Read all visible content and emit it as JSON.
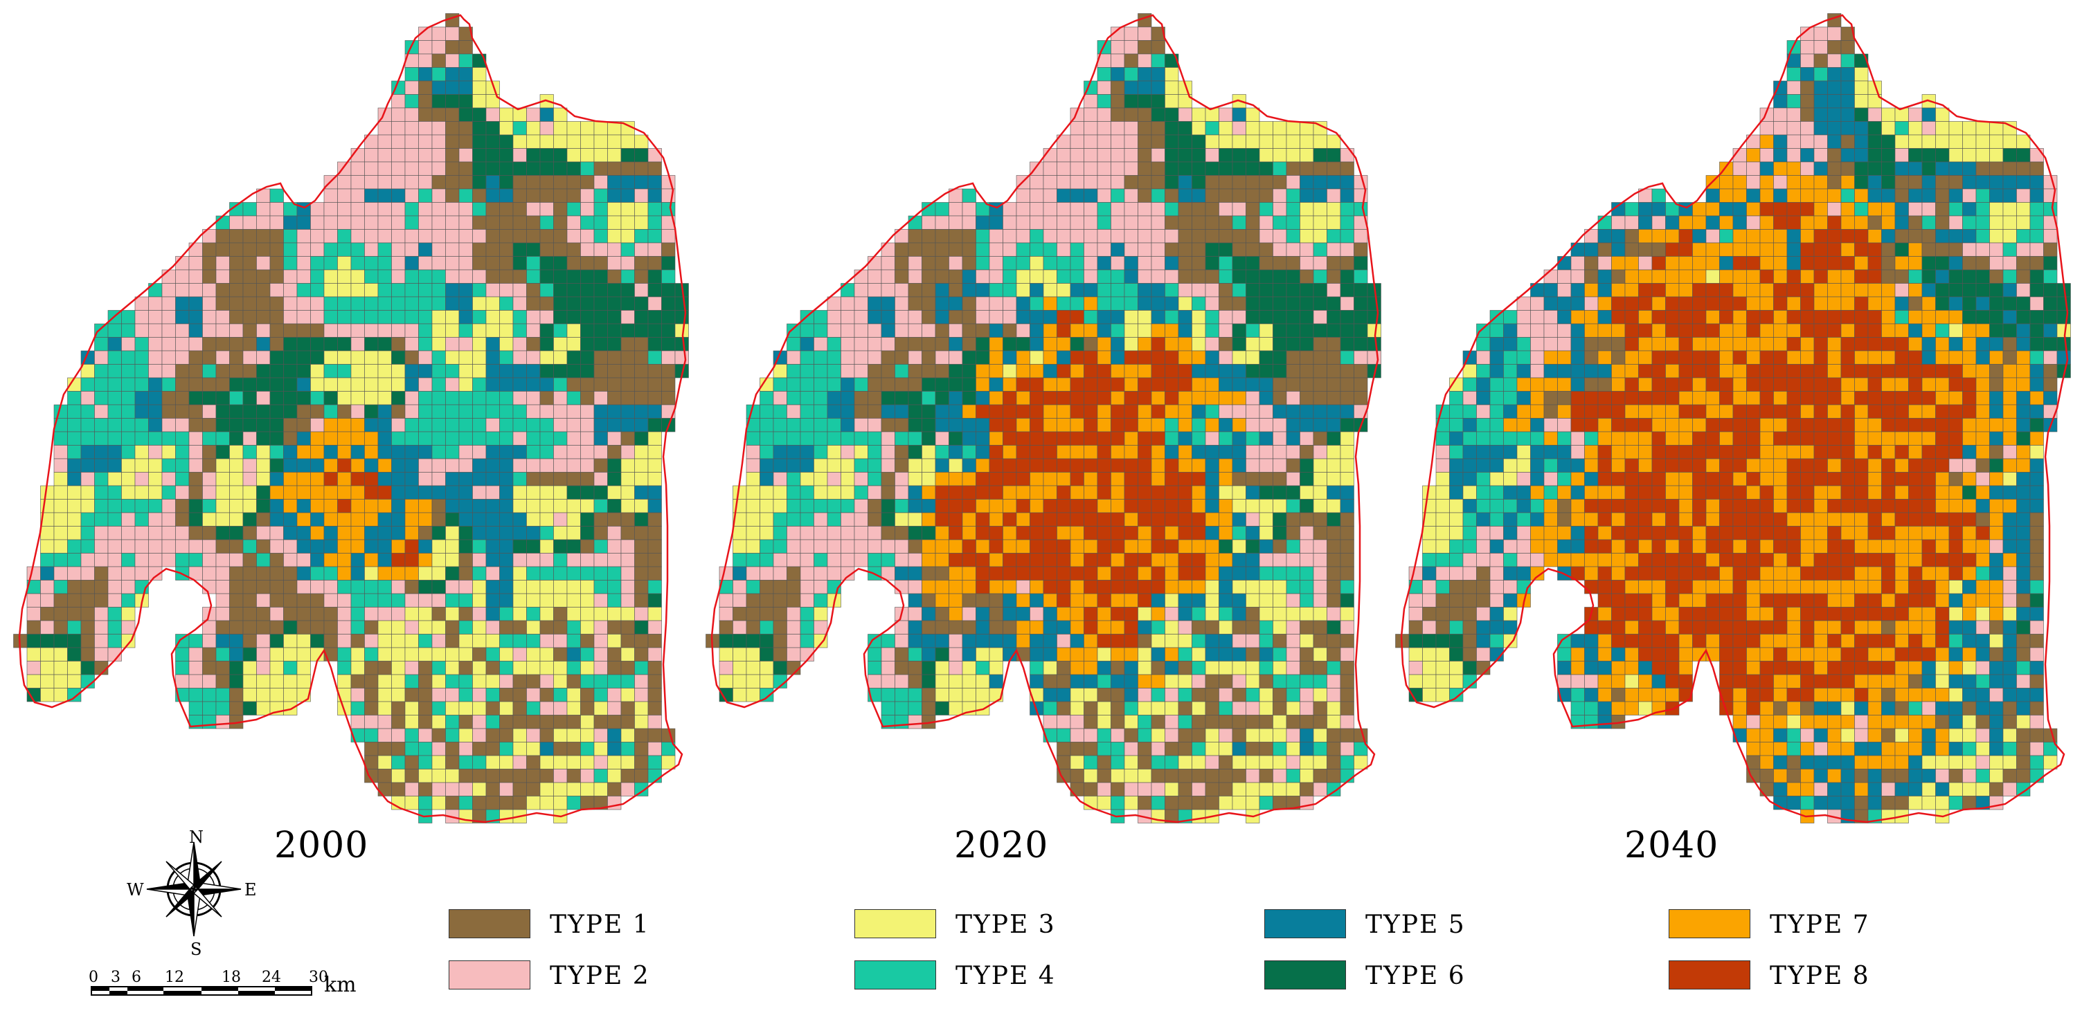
{
  "maps": [
    {
      "year": "2000",
      "seed": 11,
      "urban": 0.06
    },
    {
      "year": "2020",
      "seed": 23,
      "urban": 0.42
    },
    {
      "year": "2040",
      "seed": 37,
      "urban": 0.8
    }
  ],
  "legend": [
    {
      "label": "TYPE  1",
      "color": "#8B6B3D"
    },
    {
      "label": "TYPE  2",
      "color": "#F7BCBE"
    },
    {
      "label": "TYPE  3",
      "color": "#F3F374"
    },
    {
      "label": "TYPE  4",
      "color": "#19C9A3"
    },
    {
      "label": "TYPE  5",
      "color": "#087E9C"
    },
    {
      "label": "TYPE  6",
      "color": "#06704A"
    },
    {
      "label": "TYPE  7",
      "color": "#FBA400"
    },
    {
      "label": "TYPE  8",
      "color": "#C23A06"
    }
  ],
  "boundary_color": "#E8141A",
  "grid_line_color": "#555555",
  "compass": {
    "n": "N",
    "s": "S",
    "e": "E",
    "w": "W"
  },
  "scale": {
    "ticks": [
      "0",
      "3",
      "6",
      "12",
      "18",
      "24",
      "30"
    ],
    "unit": "km"
  }
}
